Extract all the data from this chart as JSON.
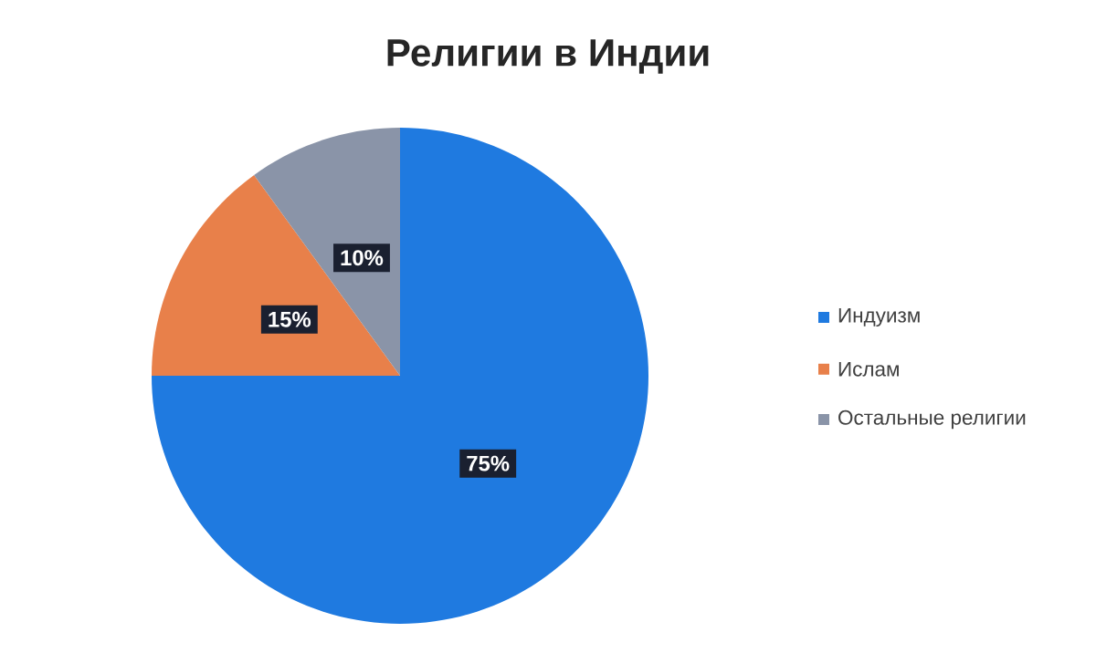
{
  "chart_data": {
    "type": "pie",
    "title": "Религии в Индии",
    "categories": [
      "Индуизм",
      "Ислам",
      "Остальные религии"
    ],
    "values": [
      75,
      15,
      10
    ],
    "value_labels": [
      "75%",
      "15%",
      "10%"
    ],
    "colors": [
      "#1f7ae0",
      "#e8804a",
      "#8a94a8"
    ],
    "legend": "right"
  }
}
